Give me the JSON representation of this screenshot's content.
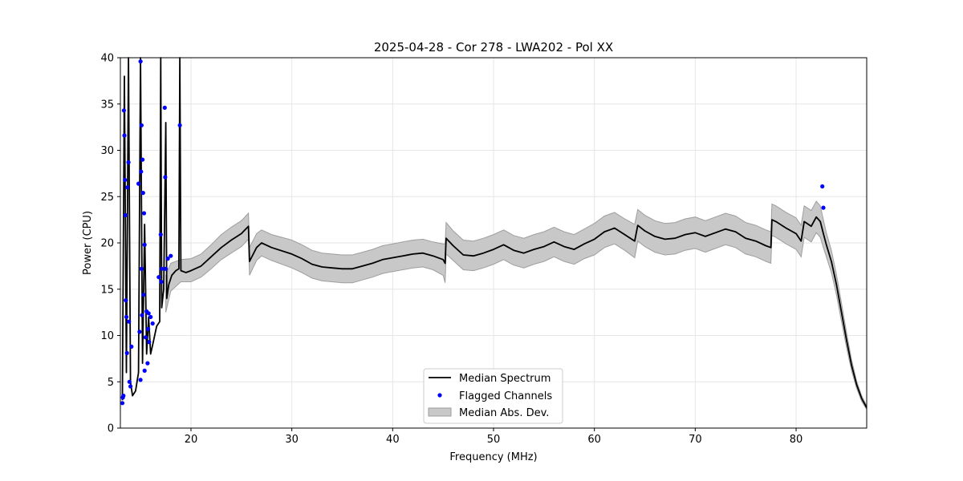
{
  "chart_data": {
    "type": "line",
    "title": "2025-04-28 - Cor 278 - LWA202 - Pol XX",
    "xlabel": "Frequency (MHz)",
    "ylabel": "Power (CPU)",
    "xlim": [
      13,
      87
    ],
    "ylim": [
      0,
      40
    ],
    "xticks": [
      20,
      30,
      40,
      50,
      60,
      70,
      80
    ],
    "yticks": [
      0,
      5,
      10,
      15,
      20,
      25,
      30,
      35,
      40
    ],
    "grid": true,
    "legend": {
      "placement": "lower-center",
      "entries": [
        "Median Spectrum",
        "Flagged Channels",
        "Median Abs. Dev."
      ]
    },
    "colors": {
      "median": "#000000",
      "flagged": "#0000ff",
      "band": "#c8c8c8",
      "band_edge": "#9e9e9e"
    },
    "series": [
      {
        "name": "Median Spectrum",
        "kind": "line",
        "points": [
          [
            13.2,
            3
          ],
          [
            13.4,
            38
          ],
          [
            13.6,
            6
          ],
          [
            13.8,
            40
          ],
          [
            14,
            5
          ],
          [
            14.2,
            3.5
          ],
          [
            14.5,
            4
          ],
          [
            14.8,
            6
          ],
          [
            15,
            40
          ],
          [
            15.2,
            7
          ],
          [
            15.4,
            22
          ],
          [
            15.6,
            8
          ],
          [
            15.8,
            12
          ],
          [
            16,
            8
          ],
          [
            16.3,
            9.5
          ],
          [
            16.6,
            11
          ],
          [
            16.9,
            11.5
          ],
          [
            17,
            40
          ],
          [
            17.1,
            13
          ],
          [
            17.3,
            15
          ],
          [
            17.5,
            33
          ],
          [
            17.6,
            14
          ],
          [
            17.8,
            15.5
          ],
          [
            18.1,
            16.5
          ],
          [
            18.5,
            17
          ],
          [
            18.8,
            17.2
          ],
          [
            18.9,
            40
          ],
          [
            19,
            17
          ],
          [
            19.5,
            16.8
          ],
          [
            20,
            17
          ],
          [
            21,
            17.5
          ],
          [
            22,
            18.5
          ],
          [
            23,
            19.5
          ],
          [
            24,
            20.3
          ],
          [
            25,
            21
          ],
          [
            25.7,
            21.8
          ],
          [
            25.8,
            18
          ],
          [
            26.5,
            19.5
          ],
          [
            27,
            20
          ],
          [
            28,
            19.5
          ],
          [
            30,
            18.8
          ],
          [
            31,
            18.3
          ],
          [
            32,
            17.7
          ],
          [
            33,
            17.4
          ],
          [
            34,
            17.3
          ],
          [
            35,
            17.2
          ],
          [
            36,
            17.2
          ],
          [
            37,
            17.5
          ],
          [
            38,
            17.8
          ],
          [
            39,
            18.2
          ],
          [
            40,
            18.4
          ],
          [
            41,
            18.6
          ],
          [
            42,
            18.8
          ],
          [
            43,
            18.9
          ],
          [
            44,
            18.6
          ],
          [
            45,
            18.2
          ],
          [
            45.2,
            17.8
          ],
          [
            45.3,
            20.5
          ],
          [
            46,
            19.7
          ],
          [
            47,
            18.7
          ],
          [
            48,
            18.6
          ],
          [
            49,
            18.9
          ],
          [
            50,
            19.3
          ],
          [
            51,
            19.8
          ],
          [
            52,
            19.2
          ],
          [
            53,
            18.9
          ],
          [
            54,
            19.3
          ],
          [
            55,
            19.6
          ],
          [
            56,
            20.1
          ],
          [
            57,
            19.6
          ],
          [
            58,
            19.3
          ],
          [
            59,
            19.9
          ],
          [
            60,
            20.4
          ],
          [
            61,
            21.2
          ],
          [
            62,
            21.6
          ],
          [
            63,
            20.9
          ],
          [
            64,
            20.2
          ],
          [
            64.3,
            21.9
          ],
          [
            65,
            21.3
          ],
          [
            66,
            20.7
          ],
          [
            67,
            20.4
          ],
          [
            68,
            20.5
          ],
          [
            69,
            20.9
          ],
          [
            70,
            21.1
          ],
          [
            71,
            20.7
          ],
          [
            72,
            21.1
          ],
          [
            73,
            21.5
          ],
          [
            74,
            21.2
          ],
          [
            75,
            20.5
          ],
          [
            76,
            20.2
          ],
          [
            77,
            19.7
          ],
          [
            77.5,
            19.5
          ],
          [
            77.6,
            22.5
          ],
          [
            78,
            22.3
          ],
          [
            79,
            21.6
          ],
          [
            80,
            21.0
          ],
          [
            80.5,
            20.2
          ],
          [
            80.8,
            22.3
          ],
          [
            81.5,
            21.8
          ],
          [
            82,
            22.8
          ],
          [
            82.4,
            22.3
          ],
          [
            82.7,
            21
          ],
          [
            83,
            19.8
          ],
          [
            83.5,
            18
          ],
          [
            84,
            15.5
          ],
          [
            84.5,
            12.5
          ],
          [
            85,
            9.5
          ],
          [
            85.5,
            6.8
          ],
          [
            86,
            4.7
          ],
          [
            86.5,
            3.2
          ],
          [
            87,
            2.2
          ]
        ]
      },
      {
        "name": "Flagged Channels",
        "kind": "scatter",
        "points": [
          [
            13.2,
            2.7
          ],
          [
            13.25,
            3.3
          ],
          [
            13.3,
            3.5
          ],
          [
            13.35,
            34.3
          ],
          [
            13.4,
            31.6
          ],
          [
            13.45,
            26.8
          ],
          [
            13.5,
            23
          ],
          [
            13.55,
            13.8
          ],
          [
            13.6,
            12
          ],
          [
            13.65,
            8.1
          ],
          [
            13.7,
            26
          ],
          [
            13.8,
            28.7
          ],
          [
            13.85,
            11.5
          ],
          [
            13.9,
            5
          ],
          [
            14,
            4.5
          ],
          [
            14.1,
            8.8
          ],
          [
            14.8,
            26.4
          ],
          [
            14.9,
            10.4
          ],
          [
            15,
            5.2
          ],
          [
            15,
            39.6
          ],
          [
            15.05,
            27.7
          ],
          [
            15.1,
            32.7
          ],
          [
            15.1,
            17.2
          ],
          [
            15.15,
            12.2
          ],
          [
            15.2,
            29
          ],
          [
            15.25,
            25.4
          ],
          [
            15.3,
            14.4
          ],
          [
            15.35,
            23.2
          ],
          [
            15.4,
            19.8
          ],
          [
            15.4,
            6.2
          ],
          [
            15.5,
            9.8
          ],
          [
            15.6,
            12.6
          ],
          [
            15.7,
            7
          ],
          [
            15.75,
            10.7
          ],
          [
            15.8,
            12.4
          ],
          [
            15.85,
            9.3
          ],
          [
            16,
            12
          ],
          [
            16.2,
            11.3
          ],
          [
            16.8,
            16.3
          ],
          [
            17,
            20.9
          ],
          [
            17.05,
            15.8
          ],
          [
            17.1,
            17.2
          ],
          [
            17.4,
            34.6
          ],
          [
            17.45,
            27.1
          ],
          [
            17.5,
            17.2
          ],
          [
            17.7,
            18.3
          ],
          [
            18,
            18.6
          ],
          [
            18.9,
            32.7
          ],
          [
            82.6,
            26.1
          ],
          [
            82.7,
            23.8
          ]
        ]
      },
      {
        "name": "Median Abs. Dev.",
        "kind": "band",
        "points": [
          [
            17.5,
            12.5,
            16.5
          ],
          [
            18,
            14.8,
            17.8
          ],
          [
            19,
            15.8,
            18.2
          ],
          [
            20,
            15.8,
            18.3
          ],
          [
            21,
            16.3,
            18.8
          ],
          [
            22,
            17.2,
            19.8
          ],
          [
            23,
            18.2,
            20.9
          ],
          [
            24,
            18.9,
            21.7
          ],
          [
            25,
            19.6,
            22.4
          ],
          [
            25.7,
            20.4,
            23.2
          ],
          [
            25.8,
            16.5,
            19.5
          ],
          [
            26.5,
            18.1,
            21
          ],
          [
            27,
            18.6,
            21.4
          ],
          [
            28,
            18.1,
            20.9
          ],
          [
            30,
            17.3,
            20.3
          ],
          [
            31,
            16.8,
            19.8
          ],
          [
            32,
            16.2,
            19.2
          ],
          [
            33,
            15.9,
            18.9
          ],
          [
            34,
            15.8,
            18.8
          ],
          [
            35,
            15.7,
            18.7
          ],
          [
            36,
            15.7,
            18.7
          ],
          [
            37,
            16,
            19
          ],
          [
            38,
            16.3,
            19.3
          ],
          [
            39,
            16.7,
            19.7
          ],
          [
            40,
            16.9,
            19.9
          ],
          [
            41,
            17.1,
            20.1
          ],
          [
            42,
            17.3,
            20.3
          ],
          [
            43,
            17.4,
            20.4
          ],
          [
            44,
            17.1,
            20.1
          ],
          [
            45,
            16.5,
            19.9
          ],
          [
            45.2,
            15.7,
            19.9
          ],
          [
            45.3,
            18.8,
            22.2
          ],
          [
            46,
            18.1,
            21.3
          ],
          [
            47,
            17.1,
            20.3
          ],
          [
            48,
            17,
            20.2
          ],
          [
            49,
            17.3,
            20.5
          ],
          [
            50,
            17.7,
            20.9
          ],
          [
            51,
            18.2,
            21.4
          ],
          [
            52,
            17.6,
            20.8
          ],
          [
            53,
            17.3,
            20.5
          ],
          [
            54,
            17.7,
            20.9
          ],
          [
            55,
            18,
            21.2
          ],
          [
            56,
            18.5,
            21.7
          ],
          [
            57,
            18,
            21.2
          ],
          [
            58,
            17.7,
            20.9
          ],
          [
            59,
            18.3,
            21.5
          ],
          [
            60,
            18.7,
            22.1
          ],
          [
            61,
            19.5,
            22.9
          ],
          [
            62,
            19.9,
            23.3
          ],
          [
            63,
            19.2,
            22.6
          ],
          [
            64,
            18.4,
            22
          ],
          [
            64.3,
            20.2,
            23.6
          ],
          [
            65,
            19.6,
            23
          ],
          [
            66,
            19,
            22.4
          ],
          [
            67,
            18.7,
            22.1
          ],
          [
            68,
            18.8,
            22.2
          ],
          [
            69,
            19.2,
            22.6
          ],
          [
            70,
            19.4,
            22.8
          ],
          [
            71,
            19,
            22.4
          ],
          [
            72,
            19.4,
            22.8
          ],
          [
            73,
            19.8,
            23.2
          ],
          [
            74,
            19.5,
            22.9
          ],
          [
            75,
            18.8,
            22.2
          ],
          [
            76,
            18.5,
            21.9
          ],
          [
            77,
            18,
            21.4
          ],
          [
            77.5,
            17.8,
            21.2
          ],
          [
            77.6,
            20.8,
            24.2
          ],
          [
            78,
            20.6,
            24
          ],
          [
            79,
            19.9,
            23.3
          ],
          [
            80,
            19.3,
            22.7
          ],
          [
            80.5,
            18.5,
            21.9
          ],
          [
            80.8,
            20.6,
            24
          ],
          [
            81.5,
            20.1,
            23.5
          ],
          [
            82,
            21.1,
            24.5
          ],
          [
            82.4,
            20.6,
            24
          ],
          [
            82.7,
            19.5,
            22.5
          ],
          [
            83,
            18.5,
            21.1
          ],
          [
            83.5,
            16.8,
            19.2
          ],
          [
            84,
            14.4,
            16.6
          ],
          [
            84.5,
            11.5,
            13.5
          ],
          [
            85,
            8.7,
            10.3
          ],
          [
            85.5,
            6.2,
            7.4
          ],
          [
            86,
            4.3,
            5.1
          ],
          [
            86.5,
            2.9,
            3.5
          ],
          [
            87,
            2,
            2.4
          ]
        ]
      }
    ]
  }
}
